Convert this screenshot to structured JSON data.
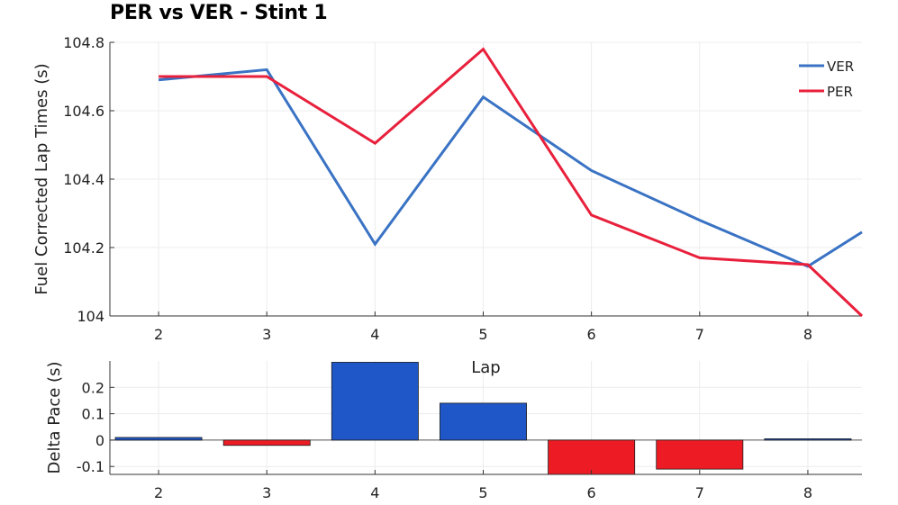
{
  "chart_data": [
    {
      "type": "line",
      "title": "PER vs VER - Stint 1",
      "xlabel": "Lap",
      "ylabel": "Fuel Corrected Lap Times (s)",
      "xlim": [
        1.55,
        8.5
      ],
      "ylim": [
        104,
        104.8
      ],
      "x_ticks": [
        "2",
        "3",
        "4",
        "5",
        "6",
        "7",
        "8"
      ],
      "y_ticks": [
        "104",
        "104.2",
        "104.4",
        "104.6",
        "104.8"
      ],
      "grid": true,
      "legend": "top-right",
      "series": [
        {
          "name": "VER",
          "color": "#3a73c4",
          "x": [
            2,
            3,
            4,
            5,
            6,
            7,
            8,
            8.5
          ],
          "y": [
            104.69,
            104.72,
            104.21,
            104.64,
            104.425,
            104.28,
            104.145,
            104.245
          ]
        },
        {
          "name": "PER",
          "color": "#e8203c",
          "x": [
            2,
            3,
            4,
            5,
            6,
            7,
            8,
            8.5
          ],
          "y": [
            104.7,
            104.7,
            104.505,
            104.78,
            104.295,
            104.17,
            104.15,
            104.0
          ]
        }
      ]
    },
    {
      "type": "bar",
      "ylabel": "Delta Pace (s)",
      "ylim": [
        -0.13,
        0.3
      ],
      "x_ticks": [
        "2",
        "3",
        "4",
        "5",
        "6",
        "7",
        "8"
      ],
      "y_ticks": [
        "-0.1",
        "0",
        "0.1",
        "0.2"
      ],
      "grid": true,
      "categories": [
        "2",
        "3",
        "4",
        "5",
        "6",
        "7",
        "8"
      ],
      "values": [
        0.01,
        -0.02,
        0.295,
        0.14,
        -0.13,
        -0.11,
        0.005
      ],
      "positive_color": "#1f57c8",
      "negative_color": "#ed1c24"
    }
  ]
}
